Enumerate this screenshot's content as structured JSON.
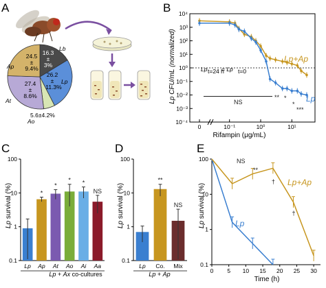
{
  "panels": {
    "A": "A",
    "B": "B",
    "C": "C",
    "D": "D",
    "E": "E"
  },
  "colors": {
    "Lb": "#4a4a4a",
    "Ap": "#d4b36a",
    "At": "#b7a9d6",
    "Ao": "#d8e6b4",
    "Lp": "#5b8fd9",
    "Lp_line": "#3a7fd0",
    "LpAp_line": "#c7961f",
    "bar_Lp": "#3a7fd0",
    "bar_Ap": "#c7961f",
    "bar_At": "#7b5ab0",
    "bar_Ao": "#7aad3a",
    "bar_Ai": "#6aaee6",
    "bar_Aa": "#8b1a2a",
    "bar_Mix": "#6b2d2d"
  },
  "chart_data": [
    {
      "panel": "A",
      "type": "pie",
      "slices": [
        {
          "name": "Lb",
          "value": 16.3,
          "label": "16.3\n±\n3%"
        },
        {
          "name": "Lp",
          "value": 26.2,
          "label": "26.2\n±\n11.3%"
        },
        {
          "name": "Ao",
          "value": 5.6,
          "label": "5.6±4.2%"
        },
        {
          "name": "At",
          "value": 27.4,
          "label": "27.4\n±\n8.6%"
        },
        {
          "name": "Ap",
          "value": 24.5,
          "label": "24.5\n±\n9.4%"
        }
      ],
      "text": {
        "Lb": "Lb",
        "Lp": "Lp",
        "Ao": "Ao",
        "At": "At",
        "Ap": "Ap",
        "lb_v1": "16.3",
        "lb_v2": "±",
        "lb_v3": "3%",
        "lp_v1": "26.2",
        "lp_v2": "±",
        "lp_v3": "11.3%",
        "at_v1": "27.4",
        "at_v2": "±",
        "at_v3": "8.6%",
        "ap_v1": "24.5",
        "ap_v2": "±",
        "ap_v3": "9.4%",
        "ao_v": "5.6±4.2%"
      }
    },
    {
      "panel": "B",
      "type": "line",
      "xlabel": "Rifampin (μg/mL)",
      "ylabel": "Lp CFU/mL (normalized)",
      "xscale": "log",
      "yscale": "log",
      "xlim": [
        0.01,
        50
      ],
      "ylim": [
        0.0001,
        10000
      ],
      "x_ticks": [
        "0",
        "10⁻¹",
        "10⁰",
        "10¹",
        "10²"
      ],
      "y_ticks": [
        "10⁻⁴",
        "10⁻³",
        "10⁻²",
        "10⁻¹",
        "10⁰",
        "10¹",
        "10²",
        "10³",
        "10⁴"
      ],
      "x": [
        0,
        0.1,
        0.15,
        0.2,
        0.3,
        0.5,
        0.7,
        1,
        1.5,
        2,
        3,
        5,
        7,
        10,
        15,
        20,
        30
      ],
      "series": [
        {
          "name": "Lp+Ap",
          "values": [
            3000,
            2500,
            2000,
            800,
            300,
            200,
            100,
            40,
            8,
            5,
            4,
            3,
            2.5,
            2,
            1.5,
            0.6,
            0.3
          ]
        },
        {
          "name": "Lp",
          "values": [
            2000,
            2000,
            1500,
            700,
            500,
            150,
            80,
            20,
            3,
            0.15,
            0.08,
            0.03,
            0.03,
            0.02,
            0.02,
            0.012,
            0.01
          ]
        }
      ],
      "annotations": {
        "baseline": "Lp",
        "baseline_sub1": "t=24 h",
        "baseline_mid": " = Lp",
        "baseline_sub2": "t=0",
        "ns": "NS",
        "stars1": "**",
        "stars2": "*",
        "stars3": "*",
        "stars4": "***",
        "lab_LpAp": "Lp+Ap",
        "lab_Lp": "Lp"
      }
    },
    {
      "panel": "C",
      "type": "bar",
      "ylabel": "Lp survival (%)",
      "xlabel": "Lp + Ax co-cultures",
      "xlabel_parts": {
        "a": "Lp",
        "b": " + ",
        "c": "Ax",
        "d": " co-cultures"
      },
      "yscale": "log",
      "ylim": [
        0.1,
        100
      ],
      "y_ticks": [
        "0.1",
        "1",
        "10",
        "100"
      ],
      "categories": [
        "Lp",
        "Ap",
        "At",
        "Ao",
        "Ai",
        "Aa"
      ],
      "values": [
        0.9,
        6.5,
        9.5,
        11,
        11,
        5.5
      ],
      "err": [
        0.8,
        1.0,
        3,
        7,
        4,
        3
      ],
      "sig": [
        "",
        "*",
        "*",
        "*",
        "*",
        "NS"
      ]
    },
    {
      "panel": "D",
      "type": "bar",
      "ylabel": "Lp survival (%)",
      "xlabel": "Lp + Ap",
      "xlabel_parts": {
        "a": "Lp",
        "b": " + ",
        "c": "Ap"
      },
      "yscale": "log",
      "ylim": [
        0.1,
        100
      ],
      "y_ticks": [
        "0.1",
        "1",
        "10",
        "100"
      ],
      "categories": [
        "Lp",
        "Co.",
        "Mix"
      ],
      "values": [
        0.7,
        13,
        1.5
      ],
      "err": [
        0.35,
        5,
        1.8
      ],
      "sig": [
        "",
        "**",
        "NS"
      ]
    },
    {
      "panel": "E",
      "type": "line",
      "ylabel": "Lp survival (%)",
      "xlabel": "Time (h)",
      "yscale": "log",
      "xlim": [
        0,
        32
      ],
      "ylim": [
        0.1,
        100
      ],
      "x_ticks": [
        "0",
        "5",
        "10",
        "15",
        "20",
        "25",
        "30"
      ],
      "y_ticks": [
        "0.1",
        "1",
        "10",
        "100"
      ],
      "series": [
        {
          "name": "Lp",
          "x": [
            0,
            6,
            12,
            18
          ],
          "values": [
            100,
            1.6,
            0.4,
            0.08
          ]
        },
        {
          "name": "Lp+Ap",
          "x": [
            0,
            6,
            12,
            18,
            24,
            30
          ],
          "values": [
            100,
            20,
            38,
            55,
            6,
            0.18
          ]
        }
      ],
      "annotations": {
        "ns": "NS",
        "stars": "**",
        "dag1": "†",
        "dag2": "†",
        "lab_LpAp": "Lp+Ap",
        "lab_Lp": "Lp"
      }
    }
  ]
}
